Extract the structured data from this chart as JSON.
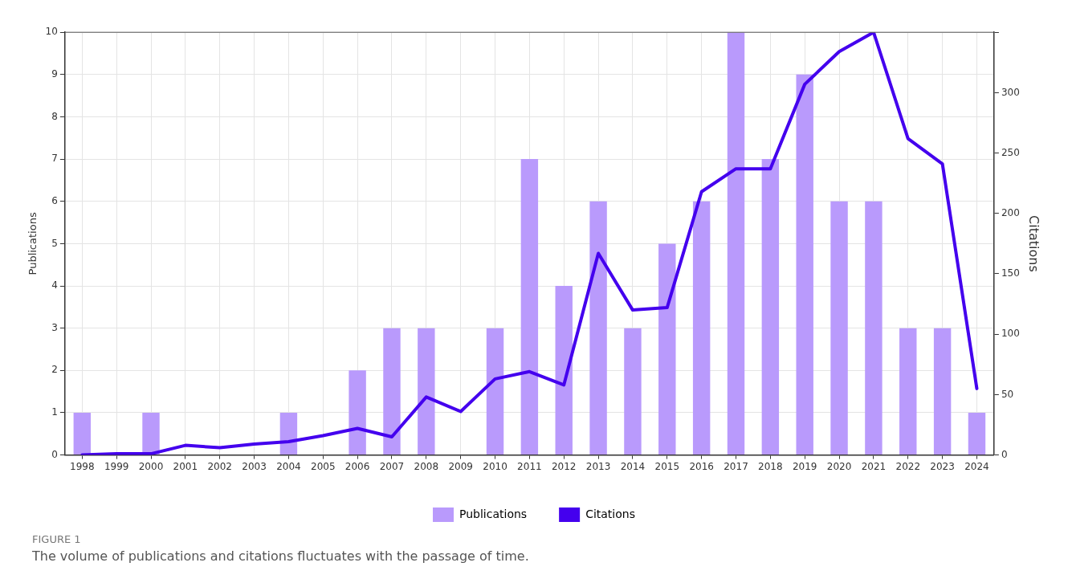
{
  "chart_data": {
    "type": "bar",
    "categories": [
      "1998",
      "1999",
      "2000",
      "2001",
      "2002",
      "2003",
      "2004",
      "2005",
      "2006",
      "2007",
      "2008",
      "2009",
      "2010",
      "2011",
      "2012",
      "2013",
      "2014",
      "2015",
      "2016",
      "2017",
      "2018",
      "2019",
      "2020",
      "2021",
      "2022",
      "2023",
      "2024"
    ],
    "series": [
      {
        "name": "Publications",
        "type": "bar",
        "color": "#b99afc",
        "values": [
          1,
          0,
          1,
          0,
          0,
          0,
          1,
          0,
          2,
          3,
          3,
          0,
          3,
          7,
          4,
          6,
          3,
          5,
          6,
          10,
          7,
          9,
          6,
          6,
          3,
          3,
          1
        ]
      },
      {
        "name": "Citations",
        "type": "line",
        "axis": "y2",
        "color": "#4400ee",
        "values": [
          0,
          1,
          1,
          8,
          6,
          9,
          11,
          16,
          22,
          15,
          48,
          36,
          63,
          69,
          58,
          167,
          120,
          122,
          218,
          237,
          237,
          307,
          334,
          350,
          262,
          241,
          55
        ]
      }
    ],
    "ylabel": "Publications",
    "y2label": "Citations",
    "ylim": [
      0,
      10
    ],
    "yticks": [
      0,
      1,
      2,
      3,
      4,
      5,
      6,
      7,
      8,
      9,
      10
    ],
    "y2lim": [
      0,
      350
    ],
    "y2ticks": [
      0,
      50,
      100,
      150,
      200,
      250,
      300,
      {
        "value": 350,
        "label": null
      }
    ],
    "grid": true,
    "legend": "bottom",
    "marker": "none",
    "line_style": "solid",
    "annotations": [
      "FIGURE 1",
      "The volume of publications and citations fluctuates with the passage of time."
    ]
  }
}
